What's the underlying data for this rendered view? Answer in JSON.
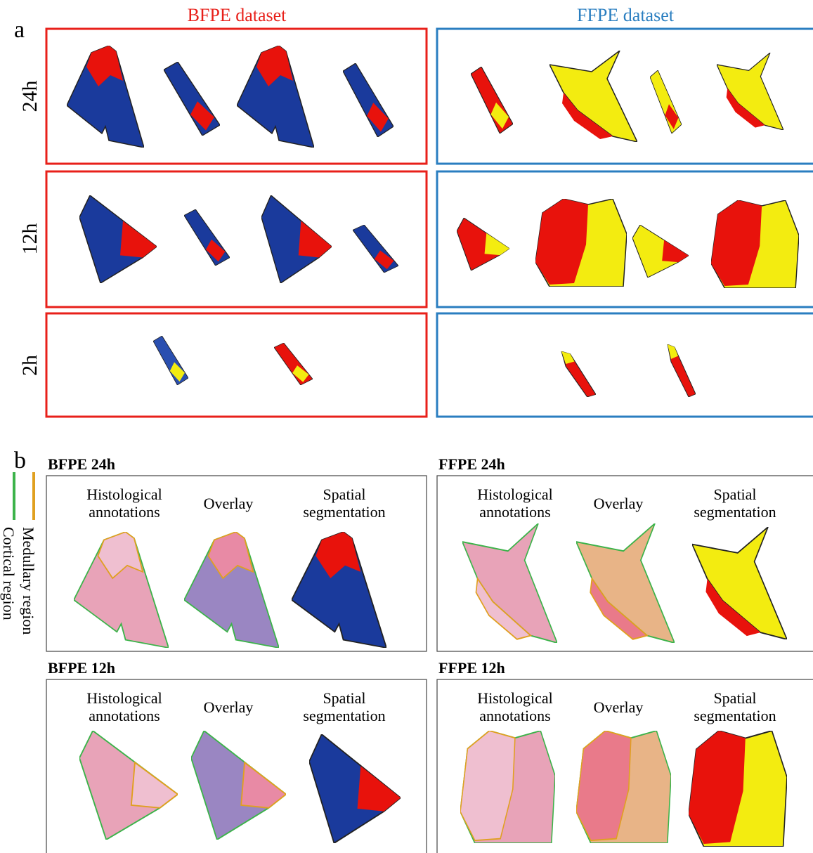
{
  "panel_a": {
    "label": "a",
    "datasets": [
      {
        "title": "BFPE dataset"
      },
      {
        "title": "FFPE dataset"
      }
    ],
    "rows": [
      "24h",
      "12h",
      "2h"
    ]
  },
  "panel_b": {
    "label": "b",
    "legend": [
      "Medullary region",
      "Cortical region"
    ],
    "subpanels": [
      {
        "title": "BFPE 24h",
        "columns": [
          [
            "Histological",
            "annotations"
          ],
          [
            "Overlay"
          ],
          [
            "Spatial",
            "segmentation"
          ]
        ]
      },
      {
        "title": "FFPE 24h",
        "columns": [
          [
            "Histological",
            "annotations"
          ],
          [
            "Overlay"
          ],
          [
            "Spatial",
            "segmentation"
          ]
        ]
      },
      {
        "title": "BFPE 12h",
        "columns": [
          [
            "Histological",
            "annotations"
          ],
          [
            "Overlay"
          ],
          [
            "Spatial",
            "segmentation"
          ]
        ]
      },
      {
        "title": "FFPE 12h",
        "columns": [
          [
            "Histological",
            "annotations"
          ],
          [
            "Overlay"
          ],
          [
            "Spatial",
            "segmentation"
          ]
        ]
      }
    ]
  }
}
